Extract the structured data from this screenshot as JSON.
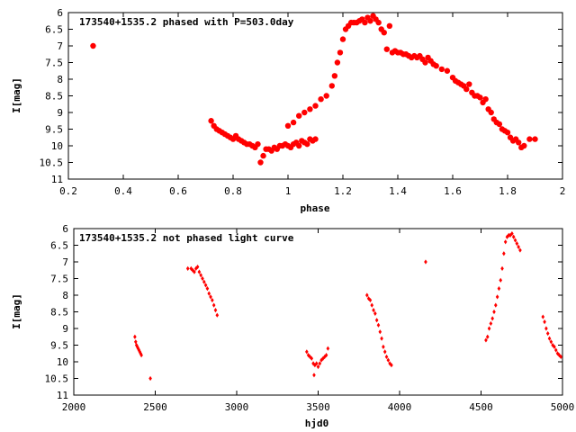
{
  "chart_data": [
    {
      "type": "scatter",
      "title": "173540+1535.2 phased with P=503.0day",
      "xlabel": "phase",
      "ylabel": "I[mag]",
      "xlim": [
        0.2,
        2.0
      ],
      "ylim": [
        11,
        6
      ],
      "y_inverted": true,
      "grid": false,
      "marker_color": "#ff0000",
      "marker": "filled-circle",
      "xticks": [
        "0.2",
        "0.4",
        "0.6",
        "0.8",
        "1",
        "1.2",
        "1.4",
        "1.6",
        "1.8",
        "2"
      ],
      "yticks": [
        "6",
        "6.5",
        "7",
        "7.5",
        "8",
        "8.5",
        "9",
        "9.5",
        "10",
        "10.5",
        "11"
      ],
      "x": [
        0.29,
        0.72,
        0.73,
        0.74,
        0.75,
        0.76,
        0.77,
        0.78,
        0.79,
        0.8,
        0.81,
        0.82,
        0.83,
        0.84,
        0.85,
        0.86,
        0.87,
        0.88,
        0.89,
        0.9,
        0.91,
        0.92,
        0.93,
        0.94,
        0.95,
        0.96,
        0.97,
        0.98,
        0.99,
        1.0,
        1.01,
        1.02,
        1.03,
        1.04,
        1.05,
        1.06,
        1.07,
        1.08,
        1.09,
        1.1,
        1.0,
        1.02,
        1.04,
        1.06,
        1.08,
        1.1,
        1.12,
        1.14,
        1.16,
        1.17,
        1.18,
        1.19,
        1.2,
        1.21,
        1.22,
        1.23,
        1.24,
        1.25,
        1.26,
        1.27,
        1.28,
        1.29,
        1.3,
        1.31,
        1.32,
        1.33,
        1.34,
        1.35,
        1.36,
        1.37,
        1.38,
        1.39,
        1.4,
        1.41,
        1.42,
        1.43,
        1.44,
        1.45,
        1.46,
        1.47,
        1.48,
        1.49,
        1.5,
        1.51,
        1.52,
        1.53,
        1.54,
        1.56,
        1.58,
        1.6,
        1.61,
        1.62,
        1.63,
        1.64,
        1.65,
        1.66,
        1.67,
        1.68,
        1.69,
        1.7,
        1.71,
        1.72,
        1.73,
        1.74,
        1.75,
        1.76,
        1.77,
        1.78,
        1.79,
        1.8,
        1.81,
        1.82,
        1.83,
        1.84,
        1.85,
        1.86,
        1.88,
        1.9
      ],
      "y": [
        7.0,
        9.25,
        9.4,
        9.5,
        9.55,
        9.6,
        9.65,
        9.7,
        9.75,
        9.8,
        9.7,
        9.8,
        9.85,
        9.9,
        9.95,
        9.95,
        10.0,
        10.05,
        9.95,
        10.5,
        10.3,
        10.1,
        10.1,
        10.15,
        10.05,
        10.1,
        10.0,
        10.0,
        9.95,
        10.0,
        10.05,
        9.95,
        9.9,
        10.0,
        9.85,
        9.9,
        9.95,
        9.8,
        9.85,
        9.8,
        9.4,
        9.3,
        9.1,
        9.0,
        8.9,
        8.8,
        8.6,
        8.5,
        8.2,
        7.9,
        7.5,
        7.2,
        6.8,
        6.5,
        6.4,
        6.3,
        6.3,
        6.3,
        6.25,
        6.2,
        6.3,
        6.15,
        6.25,
        6.1,
        6.2,
        6.3,
        6.5,
        6.6,
        7.1,
        6.4,
        7.2,
        7.15,
        7.2,
        7.2,
        7.25,
        7.25,
        7.3,
        7.35,
        7.3,
        7.35,
        7.3,
        7.4,
        7.5,
        7.35,
        7.45,
        7.55,
        7.6,
        7.7,
        7.75,
        7.95,
        8.05,
        8.1,
        8.15,
        8.2,
        8.3,
        8.15,
        8.4,
        8.5,
        8.5,
        8.55,
        8.7,
        8.6,
        8.9,
        9.0,
        9.2,
        9.3,
        9.35,
        9.5,
        9.55,
        9.6,
        9.75,
        9.85,
        9.8,
        9.9,
        10.05,
        10.0,
        9.8,
        9.8
      ]
    },
    {
      "type": "scatter",
      "title": "173540+1535.2 not phased light curve",
      "xlabel": "hjd0",
      "ylabel": "I[mag]",
      "xlim": [
        2000,
        5000
      ],
      "ylim": [
        11,
        6
      ],
      "y_inverted": true,
      "grid": false,
      "marker_color": "#ff0000",
      "marker": "small-diamond",
      "xticks": [
        "2000",
        "2500",
        "3000",
        "3500",
        "4000",
        "4500",
        "5000"
      ],
      "yticks": [
        "6",
        "6.5",
        "7",
        "7.5",
        "8",
        "8.5",
        "9",
        "9.5",
        "10",
        "10.5",
        "11"
      ],
      "x": [
        2375,
        2380,
        2385,
        2390,
        2395,
        2400,
        2405,
        2410,
        2415,
        2470,
        2700,
        2720,
        2730,
        2740,
        2750,
        2760,
        2770,
        2780,
        2790,
        2800,
        2810,
        2820,
        2830,
        2840,
        2850,
        2860,
        2870,
        2880,
        3430,
        3440,
        3450,
        3460,
        3470,
        3475,
        3480,
        3490,
        3500,
        3510,
        3520,
        3530,
        3540,
        3550,
        3560,
        3800,
        3810,
        3820,
        3830,
        3840,
        3850,
        3860,
        3870,
        3880,
        3890,
        3900,
        3910,
        3920,
        3930,
        3940,
        3950,
        4160,
        4530,
        4540,
        4550,
        4560,
        4570,
        4580,
        4590,
        4600,
        4610,
        4620,
        4630,
        4640,
        4650,
        4660,
        4670,
        4680,
        4690,
        4700,
        4710,
        4720,
        4730,
        4740,
        4880,
        4890,
        4900,
        4910,
        4920,
        4930,
        4940,
        4950,
        4960,
        4970,
        4980,
        4990
      ],
      "y": [
        9.25,
        9.4,
        9.5,
        9.55,
        9.6,
        9.65,
        9.7,
        9.75,
        9.8,
        10.5,
        7.2,
        7.2,
        7.25,
        7.3,
        7.2,
        7.15,
        7.3,
        7.4,
        7.5,
        7.6,
        7.7,
        7.8,
        7.95,
        8.05,
        8.15,
        8.3,
        8.45,
        8.6,
        9.7,
        9.8,
        9.85,
        9.9,
        10.05,
        10.4,
        10.1,
        10.05,
        10.15,
        10.05,
        9.95,
        9.9,
        9.85,
        9.8,
        9.6,
        8.0,
        8.1,
        8.15,
        8.3,
        8.45,
        8.55,
        8.75,
        8.9,
        9.1,
        9.3,
        9.55,
        9.7,
        9.85,
        9.95,
        10.05,
        10.1,
        7.0,
        9.35,
        9.25,
        9.0,
        8.85,
        8.7,
        8.5,
        8.3,
        8.05,
        7.8,
        7.55,
        7.2,
        6.75,
        6.4,
        6.25,
        6.2,
        6.2,
        6.15,
        6.25,
        6.35,
        6.45,
        6.55,
        6.65,
        8.65,
        8.8,
        9.0,
        9.15,
        9.3,
        9.4,
        9.5,
        9.55,
        9.65,
        9.75,
        9.8,
        9.85
      ]
    }
  ]
}
